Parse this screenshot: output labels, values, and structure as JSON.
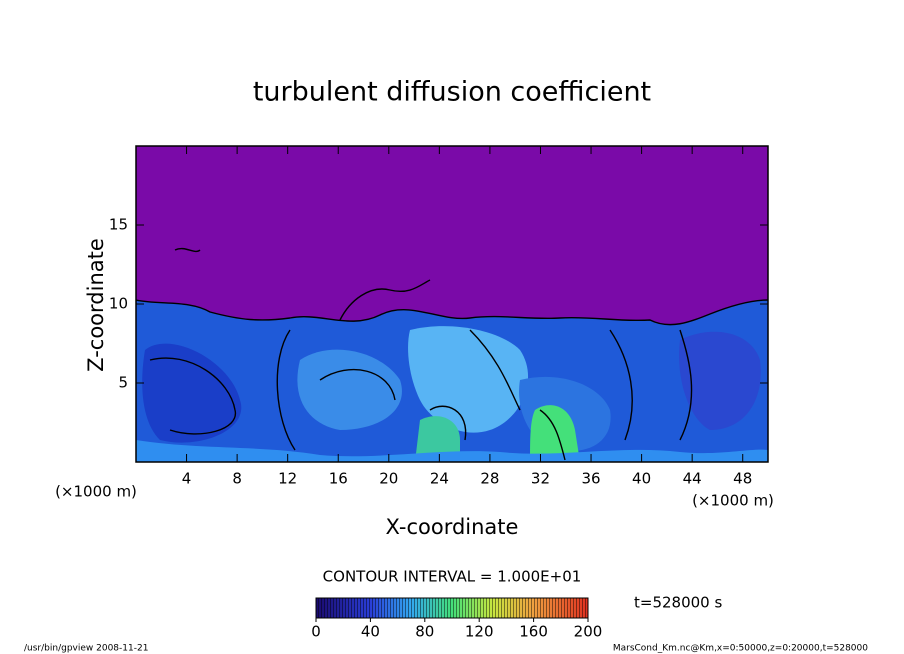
{
  "chart_data": {
    "type": "contour",
    "title": "turbulent diffusion coefficient",
    "x_label": "X-coordinate",
    "y_label": "Z-coordinate",
    "x_unit_label": "(×1000 m)",
    "y_unit_label": "(×1000 m)",
    "xlim": [
      0,
      50
    ],
    "xticks": [
      4,
      8,
      12,
      16,
      20,
      24,
      28,
      32,
      36,
      40,
      44,
      48
    ],
    "ylim": [
      0,
      20
    ],
    "yticks": [
      5,
      10,
      15
    ],
    "contour_interval_label": "CONTOUR INTERVAL = 1.000E+01",
    "time_label": "t=528000 s",
    "colorbar": {
      "lim": [
        0,
        200
      ],
      "ticks": [
        0,
        40,
        80,
        120,
        160,
        200
      ]
    },
    "footer_left": "/usr/bin/gpview  2008-11-21",
    "footer_right": "MarsCond_Km.nc@Km,x=0:50000,z=0:20000,t=528000"
  }
}
